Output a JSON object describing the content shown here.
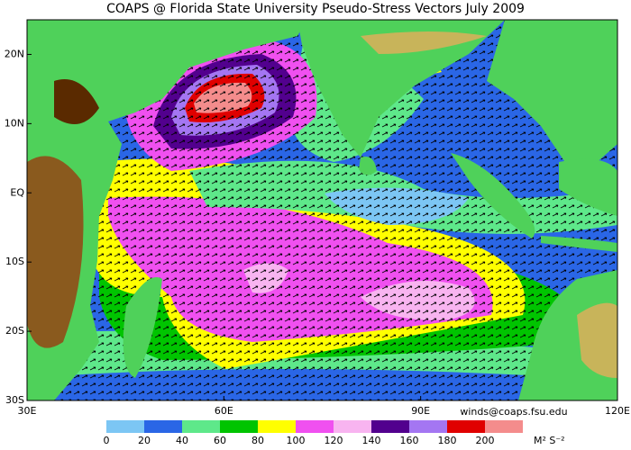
{
  "chart_data": {
    "type": "map",
    "title": "COAPS @ Florida State University Pseudo-Stress Vectors July 2009",
    "xlim": [
      30,
      120
    ],
    "ylim": [
      -30,
      25
    ],
    "xticks": [
      {
        "value": 30,
        "label": "30E"
      },
      {
        "value": 60,
        "label": "60E"
      },
      {
        "value": 90,
        "label": "90E"
      },
      {
        "value": 120,
        "label": "120E"
      }
    ],
    "yticks": [
      {
        "value": 20,
        "label": "20N"
      },
      {
        "value": 10,
        "label": "10N"
      },
      {
        "value": 0,
        "label": "EQ"
      },
      {
        "value": -10,
        "label": "10S"
      },
      {
        "value": -20,
        "label": "20S"
      },
      {
        "value": -30,
        "label": "30S"
      }
    ],
    "colorbar": {
      "levels": [
        0,
        20,
        40,
        60,
        80,
        100,
        120,
        140,
        160,
        180,
        200
      ],
      "colors": [
        "#7cc6f4",
        "#2a66e6",
        "#5ee88a",
        "#00c400",
        "#ffff00",
        "#f050f0",
        "#f8b4f0",
        "#52008e",
        "#a476f2",
        "#e00000",
        "#f48c8c"
      ],
      "units": "M² S⁻²"
    },
    "credit": "winds@coaps.fsu.edu"
  }
}
